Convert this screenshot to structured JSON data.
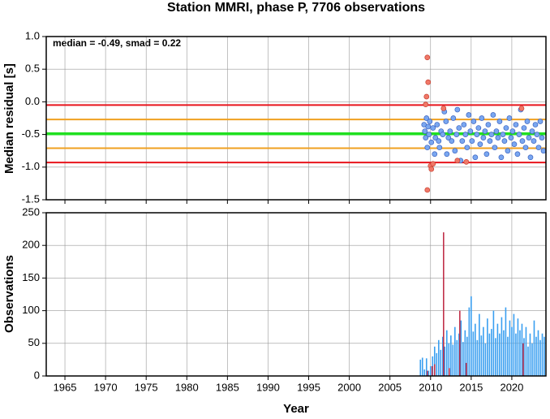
{
  "chart_data": [
    {
      "type": "scatter",
      "title": "Station MMRI, phase P, 7706 observations",
      "ylabel": "Median residual [s]",
      "annotation": "median = -0.49, smad = 0.22",
      "xlim": [
        1962.7,
        2024.2
      ],
      "xticks": [
        1965,
        1970,
        1975,
        1980,
        1985,
        1990,
        1995,
        2000,
        2005,
        2010,
        2015,
        2020
      ],
      "ylim": [
        -1.5,
        1
      ],
      "yticks": [
        {
          "value": 1,
          "label": "1.0"
        },
        0.5,
        {
          "value": 0,
          "label": "0.0"
        },
        -0.5,
        {
          "value": -1,
          "label": "-1.0"
        },
        -1.5
      ],
      "grid": true,
      "reference_lines": [
        {
          "value": -0.05,
          "color": "#e8141c"
        },
        {
          "value": -0.27,
          "color": "#f0a020"
        },
        {
          "value": -0.49,
          "color": "#20e020"
        },
        {
          "value": -0.71,
          "color": "#f0a020"
        },
        {
          "value": -0.93,
          "color": "#e8141c"
        }
      ],
      "series": [
        {
          "color": "#7aa7f0",
          "x": [
            2009.2,
            2009.3,
            2009.4,
            2009.5,
            2009.6,
            2009.7,
            2009.8,
            2009.9,
            2010.1,
            2010.3,
            2010.5,
            2010.6,
            2010.8,
            2011.0,
            2011.1,
            2011.3,
            2011.5,
            2011.7,
            2011.9,
            2012.0,
            2012.2,
            2012.4,
            2012.6,
            2012.8,
            2013.0,
            2013.2,
            2013.3,
            2013.5,
            2013.7,
            2013.9,
            2014.1,
            2014.3,
            2014.5,
            2014.7,
            2014.9,
            2015.1,
            2015.3,
            2015.5,
            2015.7,
            2015.9,
            2016.1,
            2016.3,
            2016.5,
            2016.7,
            2016.9,
            2017.1,
            2017.3,
            2017.5,
            2017.7,
            2017.9,
            2018.1,
            2018.3,
            2018.5,
            2018.7,
            2018.9,
            2019.1,
            2019.3,
            2019.5,
            2019.7,
            2019.9,
            2020.1,
            2020.3,
            2020.5,
            2020.7,
            2020.9,
            2021.1,
            2021.3,
            2021.5,
            2021.7,
            2021.9,
            2022.1,
            2022.3,
            2022.5,
            2022.7,
            2022.9,
            2023.1,
            2023.3,
            2023.5,
            2023.7,
            2023.9
          ],
          "values": [
            -0.35,
            -0.45,
            -0.55,
            -0.25,
            -0.7,
            -0.38,
            -0.5,
            -0.3,
            -0.62,
            -0.4,
            -0.8,
            -0.55,
            -0.35,
            -0.6,
            -0.7,
            -0.45,
            -0.5,
            -0.15,
            -0.3,
            -0.8,
            -0.55,
            -0.45,
            -0.6,
            -0.25,
            -0.75,
            -0.5,
            -0.12,
            -0.4,
            -0.9,
            -0.6,
            -0.35,
            -0.5,
            -0.7,
            -0.2,
            -0.45,
            -0.6,
            -0.3,
            -0.85,
            -0.5,
            -0.4,
            -0.65,
            -0.25,
            -0.55,
            -0.45,
            -0.8,
            -0.35,
            -0.6,
            -0.5,
            -0.2,
            -0.7,
            -0.45,
            -0.55,
            -0.3,
            -0.85,
            -0.5,
            -0.6,
            -0.4,
            -0.75,
            -0.25,
            -0.55,
            -0.45,
            -0.65,
            -0.35,
            -0.8,
            -0.5,
            -0.12,
            -0.6,
            -0.4,
            -0.7,
            -0.3,
            -0.55,
            -0.85,
            -0.45,
            -0.6,
            -0.35,
            -0.5,
            -0.7,
            -0.3,
            -0.55,
            -0.75
          ]
        },
        {
          "color": "#f07868",
          "x": [
            2009.6,
            2009.7,
            2009.5,
            2009.4,
            2009.6,
            2010.0,
            2010.1,
            2010.3,
            2011.6,
            2013.3,
            2014.4,
            2021.2
          ],
          "values": [
            0.68,
            0.3,
            0.08,
            -0.04,
            -1.35,
            -0.98,
            -1.03,
            -0.95,
            -0.1,
            -0.9,
            -0.92,
            -0.1
          ]
        }
      ]
    },
    {
      "type": "bar",
      "ylabel": "Observations",
      "xlabel": "Year",
      "xlim": [
        1962.7,
        2024.2
      ],
      "xticks": [
        1965,
        1970,
        1975,
        1980,
        1985,
        1990,
        1995,
        2000,
        2005,
        2010,
        2015,
        2020
      ],
      "ylim": [
        0,
        250
      ],
      "yticks": [
        0,
        50,
        100,
        150,
        200,
        250
      ],
      "grid": true,
      "series": [
        {
          "color": "#3a9ff0",
          "x": [
            2008.75,
            2009.0,
            2009.25,
            2009.5,
            2009.75,
            2010.0,
            2010.25,
            2010.5,
            2010.75,
            2011.0,
            2011.25,
            2011.5,
            2011.75,
            2012.0,
            2012.25,
            2012.5,
            2012.75,
            2013.0,
            2013.25,
            2013.5,
            2013.75,
            2014.0,
            2014.25,
            2014.5,
            2014.75,
            2015.0,
            2015.25,
            2015.5,
            2015.75,
            2016.0,
            2016.25,
            2016.5,
            2016.75,
            2017.0,
            2017.25,
            2017.5,
            2017.75,
            2018.0,
            2018.25,
            2018.5,
            2018.75,
            2019.0,
            2019.25,
            2019.5,
            2019.75,
            2020.0,
            2020.25,
            2020.5,
            2020.75,
            2021.0,
            2021.25,
            2021.5,
            2021.75,
            2022.0,
            2022.25,
            2022.5,
            2022.75,
            2023.0,
            2023.25,
            2023.5,
            2023.75,
            2024.0
          ],
          "values": [
            25,
            28,
            10,
            27,
            8,
            15,
            30,
            45,
            35,
            55,
            40,
            60,
            45,
            70,
            50,
            62,
            48,
            75,
            55,
            65,
            85,
            52,
            70,
            60,
            105,
            122,
            68,
            80,
            55,
            95,
            62,
            75,
            50,
            88,
            65,
            72,
            100,
            58,
            80,
            65,
            90,
            70,
            105,
            60,
            85,
            75,
            95,
            65,
            88,
            70,
            80,
            58,
            75,
            45,
            65,
            50,
            85,
            60,
            70,
            55,
            65,
            60
          ]
        },
        {
          "color": "#c0304a",
          "x": [
            2009.6,
            2010.2,
            2010.5,
            2011.6,
            2012.3,
            2013.6,
            2014.4,
            2021.4
          ],
          "values": [
            8,
            15,
            18,
            220,
            12,
            100,
            20,
            50
          ]
        }
      ]
    }
  ]
}
